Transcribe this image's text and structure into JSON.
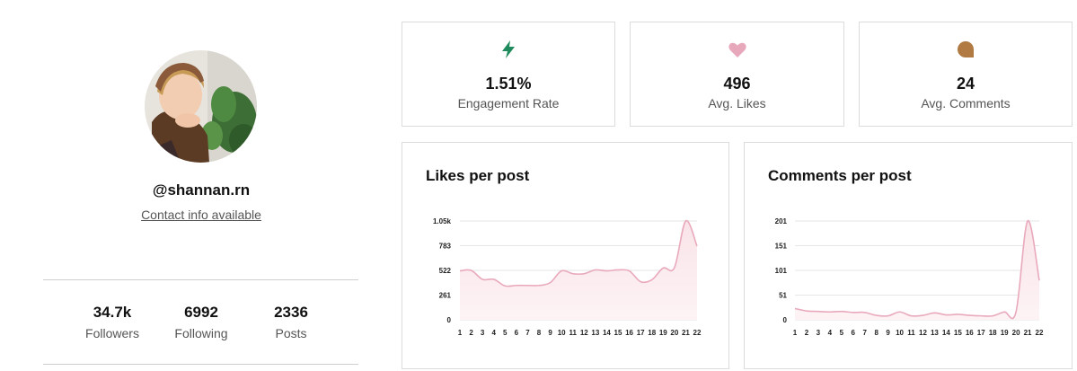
{
  "profile": {
    "handle": "@shannan.rn",
    "contact_link": "Contact info available",
    "stats": [
      {
        "value": "34.7k",
        "label": "Followers"
      },
      {
        "value": "6992",
        "label": "Following"
      },
      {
        "value": "2336",
        "label": "Posts"
      }
    ]
  },
  "metrics": [
    {
      "value": "1.51%",
      "label": "Engagement Rate",
      "icon": "lightning-icon",
      "color": "#1f8a5b"
    },
    {
      "value": "496",
      "label": "Avg. Likes",
      "icon": "heart-icon",
      "color": "#e8a8bb"
    },
    {
      "value": "24",
      "label": "Avg. Comments",
      "icon": "comment-bubble-icon",
      "color": "#b07a42"
    }
  ],
  "chart_data": [
    {
      "type": "area",
      "title": "Likes per post",
      "x": [
        1,
        2,
        3,
        4,
        5,
        6,
        7,
        8,
        9,
        10,
        11,
        12,
        13,
        14,
        15,
        16,
        17,
        18,
        19,
        20,
        21,
        22
      ],
      "y_ticks": [
        "0",
        "261",
        "522",
        "783",
        "1.05k"
      ],
      "ylim": [
        0,
        1050
      ],
      "series": [
        {
          "values": [
            520,
            525,
            430,
            430,
            360,
            365,
            365,
            365,
            395,
            520,
            490,
            490,
            530,
            520,
            530,
            520,
            405,
            425,
            550,
            555,
            1050,
            783
          ]
        }
      ],
      "color": "#e9a9bc",
      "fill": "#f9e4e8",
      "grid": true
    },
    {
      "type": "area",
      "title": "Comments per post",
      "x": [
        1,
        2,
        3,
        4,
        5,
        6,
        7,
        8,
        9,
        10,
        11,
        12,
        13,
        14,
        15,
        16,
        17,
        18,
        19,
        20,
        21,
        22
      ],
      "y_ticks": [
        "0",
        "51",
        "101",
        "151",
        "201"
      ],
      "ylim": [
        0,
        201
      ],
      "series": [
        {
          "values": [
            23,
            18,
            17,
            16,
            17,
            15,
            15,
            9,
            8,
            16,
            8,
            9,
            14,
            10,
            11,
            9,
            8,
            8,
            16,
            16,
            201,
            80
          ]
        }
      ],
      "color": "#e9a9bc",
      "fill": "#f9e4e8",
      "grid": true
    }
  ]
}
